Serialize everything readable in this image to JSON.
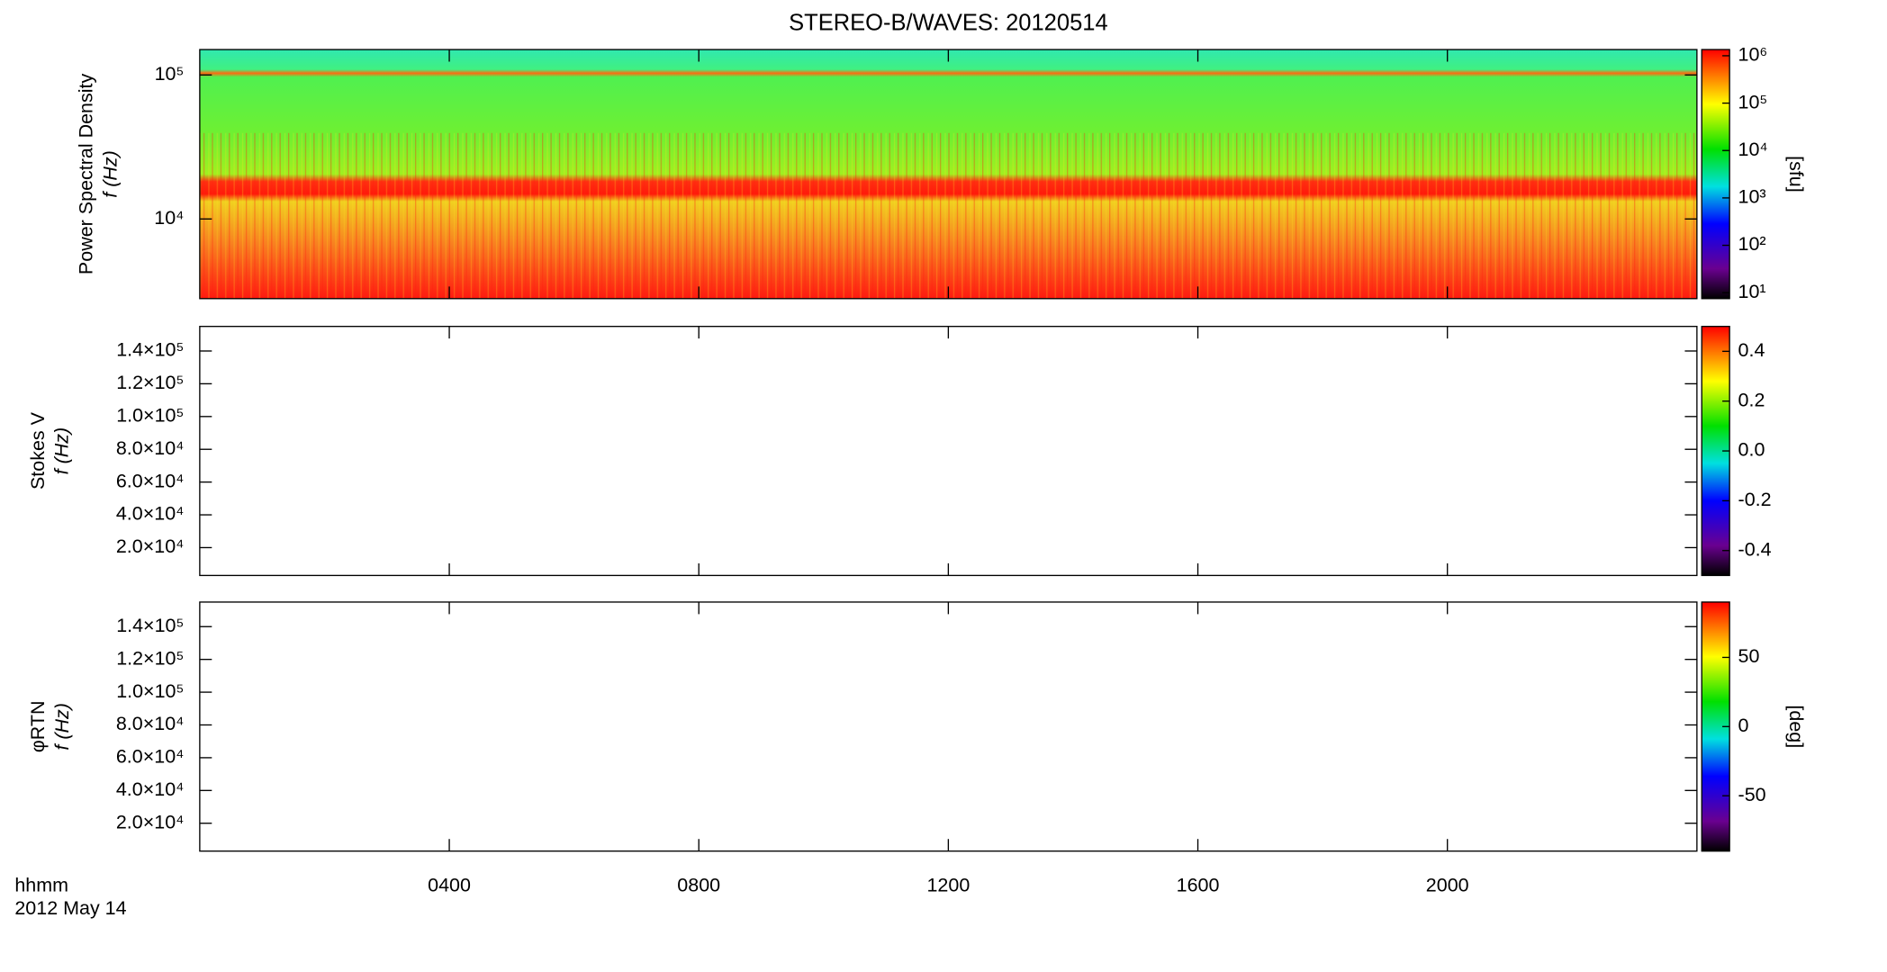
{
  "chart_data": [
    {
      "type": "heatmap",
      "title": "STEREO-B/WAVES: 20120514",
      "y_label": "Power Spectral Density",
      "y_sublabel": "f (Hz)",
      "ylog": true,
      "ylim": [
        2800,
        150000
      ],
      "yticks": [
        {
          "value": 10000,
          "label": "10⁴"
        },
        {
          "value": 100000,
          "label": "10⁵"
        }
      ],
      "colorbar": {
        "log": true,
        "lim": [
          7.5,
          1350000
        ],
        "label": "[sfu]",
        "ticks": [
          {
            "value": 10,
            "label": "10¹"
          },
          {
            "value": 100,
            "label": "10²"
          },
          {
            "value": 1000,
            "label": "10³"
          },
          {
            "value": 10000,
            "label": "10⁴"
          },
          {
            "value": 100000,
            "label": "10⁵"
          },
          {
            "value": 1000000,
            "label": "10⁶"
          }
        ]
      }
    },
    {
      "type": "heatmap",
      "y_label": "Stokes V",
      "y_sublabel": "f (Hz)",
      "ylog": false,
      "ylim": [
        3000,
        155000
      ],
      "yticks": [
        {
          "value": 20000,
          "label": "2.0×10⁴"
        },
        {
          "value": 40000,
          "label": "4.0×10⁴"
        },
        {
          "value": 60000,
          "label": "6.0×10⁴"
        },
        {
          "value": 80000,
          "label": "8.0×10⁴"
        },
        {
          "value": 100000,
          "label": "1.0×10⁵"
        },
        {
          "value": 120000,
          "label": "1.2×10⁵"
        },
        {
          "value": 140000,
          "label": "1.4×10⁵"
        }
      ],
      "colorbar": {
        "log": false,
        "lim": [
          -0.5,
          0.5
        ],
        "ticks": [
          -0.4,
          -0.2,
          {
            "value": 0,
            "label": "0.0"
          },
          0.2,
          0.4
        ]
      }
    },
    {
      "type": "heatmap",
      "y_label": "φRTN",
      "y_sublabel": "f (Hz)",
      "ylog": false,
      "ylim": [
        3000,
        155000
      ],
      "yticks": [
        {
          "value": 20000,
          "label": "2.0×10⁴"
        },
        {
          "value": 40000,
          "label": "4.0×10⁴"
        },
        {
          "value": 60000,
          "label": "6.0×10⁴"
        },
        {
          "value": 80000,
          "label": "8.0×10⁴"
        },
        {
          "value": 100000,
          "label": "1.0×10⁵"
        },
        {
          "value": 120000,
          "label": "1.2×10⁵"
        },
        {
          "value": 140000,
          "label": "1.4×10⁵"
        }
      ],
      "colorbar": {
        "log": false,
        "lim": [
          -90,
          90
        ],
        "label": "[deg]",
        "ticks": [
          -50,
          0,
          50
        ]
      },
      "x_label": "hhmm",
      "date": "2012 May 14",
      "xlim": [
        0,
        24
      ],
      "xticks": [
        {
          "value": 4,
          "label": "0400"
        },
        {
          "value": 8,
          "label": "0800"
        },
        {
          "value": 12,
          "label": "1200"
        },
        {
          "value": 16,
          "label": "1600"
        },
        {
          "value": 20,
          "label": "2000"
        }
      ]
    }
  ]
}
